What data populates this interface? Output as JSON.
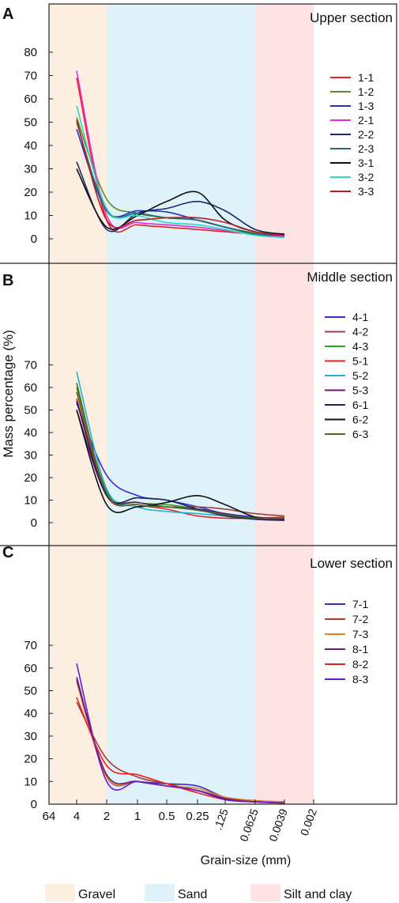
{
  "colors": {
    "gravel_band": "#fdeee2",
    "sand_band": "#dff2f9",
    "silt_band": "#fde3e4"
  },
  "xlabel": "Grain-size (mm)",
  "ylabel": "Mass percentage (%)",
  "x_ticks": [
    "64",
    "4",
    "2",
    "1",
    "0.5",
    "0.25",
    ".125",
    "0.0625",
    "0.0039",
    "0.002"
  ],
  "band_legend": [
    {
      "label": "Gravel",
      "color": "#fdeee2"
    },
    {
      "label": "Sand",
      "color": "#dff2f9"
    },
    {
      "label": "Silt and clay",
      "color": "#fde3e4"
    }
  ],
  "chart_data": [
    {
      "type": "line",
      "panel": "A",
      "title": "Upper section",
      "x": [
        "4",
        "2",
        "1",
        "0.5",
        "0.25",
        ".125",
        "0.0625",
        "0.0039"
      ],
      "ylim": [
        -7,
        80
      ],
      "y_ticks": [
        0,
        10,
        20,
        30,
        40,
        50,
        60,
        70,
        80
      ],
      "series": [
        {
          "name": "1-1",
          "color": "#e8231f",
          "values": [
            69,
            8,
            6,
            5,
            4,
            3,
            2,
            1.5
          ]
        },
        {
          "name": "1-2",
          "color": "#5b8a2e",
          "values": [
            52,
            17,
            11,
            9,
            8,
            5,
            2.5,
            1.5
          ]
        },
        {
          "name": "1-3",
          "color": "#2230c8",
          "values": [
            47,
            12,
            12,
            11.5,
            8,
            5,
            2,
            1
          ]
        },
        {
          "name": "2-1",
          "color": "#e82adc",
          "values": [
            72,
            10,
            7,
            6,
            5,
            3.5,
            2,
            1
          ]
        },
        {
          "name": "2-2",
          "color": "#1a2a66",
          "values": [
            33,
            4,
            11,
            13,
            16,
            12,
            4,
            2
          ]
        },
        {
          "name": "2-3",
          "color": "#266b78",
          "values": [
            50,
            12,
            11,
            9,
            8,
            5,
            2,
            1.5
          ]
        },
        {
          "name": "3-1",
          "color": "#111111",
          "values": [
            30,
            5,
            10,
            16,
            20,
            8,
            3,
            2
          ]
        },
        {
          "name": "3-2",
          "color": "#2adcbc",
          "values": [
            57,
            13,
            10,
            7,
            6,
            4,
            1.5,
            0.5
          ]
        },
        {
          "name": "3-3",
          "color": "#b81c1c",
          "values": [
            51,
            8,
            8,
            9,
            9,
            7,
            3,
            1.5
          ]
        }
      ]
    },
    {
      "type": "line",
      "panel": "B",
      "title": "Middle section",
      "x": [
        "4",
        "2",
        "1",
        "0.5",
        "0.25",
        ".125",
        "0.0625",
        "0.0039"
      ],
      "ylim": [
        -7,
        80
      ],
      "y_ticks": [
        0,
        10,
        20,
        30,
        40,
        50,
        60,
        70
      ],
      "series": [
        {
          "name": "4-1",
          "color": "#2f2fd0",
          "values": [
            53,
            21,
            12,
            10,
            7,
            4,
            2.5,
            1.5
          ]
        },
        {
          "name": "4-2",
          "color": "#a0423c",
          "values": [
            58,
            13,
            9,
            7,
            7,
            6,
            4,
            3
          ]
        },
        {
          "name": "4-3",
          "color": "#24a324",
          "values": [
            60,
            14,
            9,
            8,
            6,
            3,
            2,
            2
          ]
        },
        {
          "name": "5-1",
          "color": "#e8231f",
          "values": [
            55,
            12,
            8,
            6,
            3,
            2,
            2,
            2.5
          ]
        },
        {
          "name": "5-2",
          "color": "#1fb4d8",
          "values": [
            67,
            15,
            7,
            5,
            4,
            3,
            2,
            2
          ]
        },
        {
          "name": "5-3",
          "color": "#6a1a6a",
          "values": [
            50,
            12,
            9,
            7,
            6,
            4,
            2,
            1.5
          ]
        },
        {
          "name": "6-1",
          "color": "#1a2566",
          "values": [
            54,
            12,
            11,
            10,
            6,
            3,
            1.5,
            1
          ]
        },
        {
          "name": "6-2",
          "color": "#111111",
          "values": [
            50,
            8,
            7,
            9,
            12,
            8,
            2.5,
            2
          ]
        },
        {
          "name": "6-3",
          "color": "#4a6a1f",
          "values": [
            62,
            13,
            8,
            7,
            5.5,
            3.5,
            2,
            2
          ]
        }
      ]
    },
    {
      "type": "line",
      "panel": "C",
      "title": "Lower section",
      "x": [
        "4",
        "2",
        "1",
        "0.5",
        "0.25",
        ".125",
        "0.0625",
        "0.0039"
      ],
      "ylim": [
        -7,
        80
      ],
      "y_ticks": [
        0,
        10,
        20,
        30,
        40,
        50,
        60,
        70
      ],
      "series": [
        {
          "name": "7-1",
          "color": "#2f2fd0",
          "values": [
            56,
            12,
            10,
            9,
            8,
            3,
            1.5,
            1
          ]
        },
        {
          "name": "7-2",
          "color": "#a83a30",
          "values": [
            45,
            20,
            12,
            9,
            6,
            3,
            1.5,
            1
          ]
        },
        {
          "name": "7-3",
          "color": "#e87f1f",
          "values": [
            54,
            12,
            10,
            8,
            7,
            3,
            1.5,
            1
          ]
        },
        {
          "name": "8-1",
          "color": "#6a1a6a",
          "values": [
            55,
            13,
            10,
            8,
            6,
            2.5,
            1,
            0.5
          ]
        },
        {
          "name": "8-2",
          "color": "#e8231f",
          "values": [
            47,
            17,
            13,
            9,
            5,
            2,
            1,
            0.5
          ]
        },
        {
          "name": "8-3",
          "color": "#6a1acc",
          "values": [
            62,
            10,
            10,
            8,
            6,
            2,
            1,
            0.5
          ]
        }
      ]
    }
  ]
}
